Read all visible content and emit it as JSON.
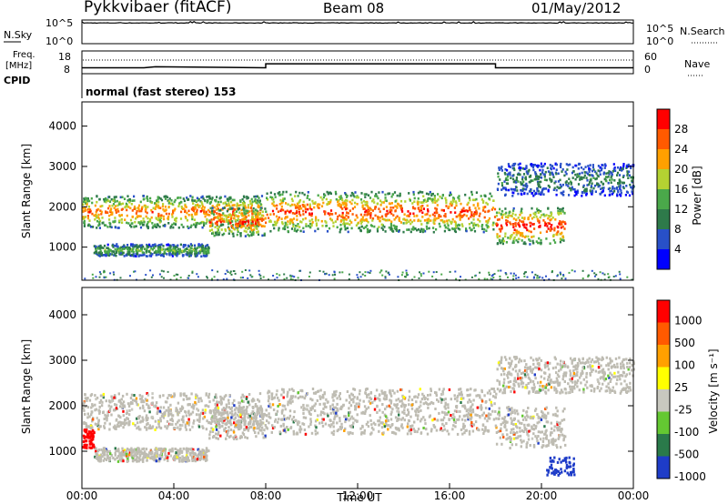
{
  "header": {
    "station": "Pykkvibaer (fitACF)",
    "beam": "Beam 08",
    "date": "01/May/2012"
  },
  "panels": {
    "nsky": {
      "left_label": "N.Sky",
      "right_label": "N.Search",
      "tick_top": "10^5",
      "tick_bottom": "10^0"
    },
    "freq": {
      "left_label_1": "Freq.",
      "left_label_2": "[MHz]",
      "right_label": "Nave",
      "ticks_left": [
        "18",
        "8"
      ],
      "ticks_right": [
        "60",
        "0"
      ]
    },
    "cpid": {
      "label": "CPID",
      "value": "normal (fast stereo) 153"
    }
  },
  "chart_data": [
    {
      "type": "line",
      "panel": "N.Sky / N.Search",
      "x": [
        "00:00",
        "08:00",
        "18:00",
        "24:00"
      ],
      "y_scale": "log",
      "ylim": [
        1,
        100000
      ],
      "series": [
        {
          "name": "N.Sky",
          "values": [
            30000,
            30000,
            30000,
            30000
          ]
        }
      ]
    },
    {
      "type": "line",
      "panel": "Freq. / Nave",
      "x_hours": [
        0,
        2.7,
        3.2,
        8.0,
        8.0,
        18.0,
        18.0,
        24.0
      ],
      "series": [
        {
          "name": "Freq.",
          "values": [
            10.5,
            10.5,
            11.0,
            10.5,
            12.5,
            12.5,
            10.5,
            10.5
          ]
        },
        {
          "name": "Nave",
          "values": [
            40,
            40,
            40,
            40,
            40,
            40,
            40,
            40
          ]
        }
      ],
      "ylim": [
        8,
        18
      ]
    },
    {
      "type": "heatmap",
      "panel": "Power",
      "ylabel": "Slant Range [km]",
      "xlim": [
        0,
        24
      ],
      "ylim": [
        180,
        4600
      ],
      "yticks": [
        "1000",
        "2000",
        "3000",
        "4000"
      ],
      "colorbar": {
        "label": "Power [dB]",
        "ticks": [
          "28",
          "24",
          "20",
          "16",
          "12",
          "8",
          "4"
        ],
        "range": [
          0,
          32
        ],
        "colors": [
          "#0000ff",
          "#2850c8",
          "#2e7a4a",
          "#4aa84a",
          "#b4d232",
          "#ffa000",
          "#ff5a00",
          "#ff0000"
        ]
      },
      "echo_bands": [
        {
          "t": [
            0.0,
            7.8
          ],
          "range_km": [
            1500,
            2300
          ],
          "dB": 24
        },
        {
          "t": [
            0.5,
            5.5
          ],
          "range_km": [
            800,
            1100
          ],
          "dB": 14
        },
        {
          "t": [
            5.5,
            8.0
          ],
          "range_km": [
            1300,
            2000
          ],
          "dB": 26
        },
        {
          "t": [
            8.0,
            18.0
          ],
          "range_km": [
            1400,
            2400
          ],
          "dB": 26
        },
        {
          "t": [
            18.0,
            21.0
          ],
          "range_km": [
            1100,
            2000
          ],
          "dB": 28
        },
        {
          "t": [
            18.0,
            24.0
          ],
          "range_km": [
            2300,
            3100
          ],
          "dB": 10
        }
      ]
    },
    {
      "type": "heatmap",
      "panel": "Velocity",
      "xlabel": "Time UT",
      "ylabel": "Slant Range [km]",
      "xlim": [
        0,
        24
      ],
      "ylim": [
        180,
        4600
      ],
      "xticks": [
        "00:00",
        "04:00",
        "08:00",
        "12:00",
        "16:00",
        "20:00",
        "00:00"
      ],
      "yticks": [
        "1000",
        "2000",
        "3000",
        "4000"
      ],
      "colorbar": {
        "label": "Velocity [m s⁻¹]",
        "ticks": [
          "1000",
          "500",
          "100",
          "25",
          "-25",
          "-100",
          "-500",
          "-1000"
        ],
        "colors": [
          "#1e3cc8",
          "#2a7a4a",
          "#64c832",
          "#c8c8bf",
          "#ffff00",
          "#ffa000",
          "#ff5a00",
          "#ff0000"
        ]
      },
      "ground_scatter_color": "#bebcb2"
    }
  ]
}
